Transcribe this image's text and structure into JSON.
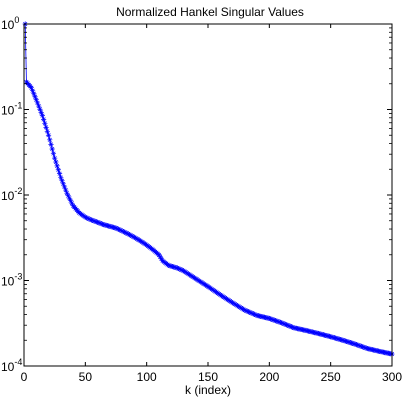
{
  "chart_data": {
    "type": "scatter",
    "title": "Normalized Hankel Singular Values",
    "xlabel": "k (index)",
    "ylabel": "",
    "xlim": [
      0,
      300
    ],
    "ylim": [
      0.0001,
      1
    ],
    "yscale": "log",
    "grid": false,
    "x_ticks": [
      0,
      50,
      100,
      150,
      200,
      250,
      300
    ],
    "y_ticks": [
      {
        "value": 1,
        "base": "10",
        "exp": "0"
      },
      {
        "value": 0.1,
        "base": "10",
        "exp": "-1"
      },
      {
        "value": 0.01,
        "base": "10",
        "exp": "-2"
      },
      {
        "value": 0.001,
        "base": "10",
        "exp": "-3"
      },
      {
        "value": 0.0001,
        "base": "10",
        "exp": "-4"
      }
    ],
    "marker": "*",
    "color": "#0000ff",
    "n_points": 300,
    "anchors": [
      [
        1,
        1.0
      ],
      [
        2,
        0.21
      ],
      [
        6,
        0.18
      ],
      [
        10,
        0.13
      ],
      [
        15,
        0.085
      ],
      [
        20,
        0.05
      ],
      [
        25,
        0.027
      ],
      [
        30,
        0.016
      ],
      [
        35,
        0.0105
      ],
      [
        40,
        0.0075
      ],
      [
        45,
        0.0062
      ],
      [
        50,
        0.0055
      ],
      [
        55,
        0.0051
      ],
      [
        60,
        0.0048
      ],
      [
        65,
        0.0045
      ],
      [
        70,
        0.0043
      ],
      [
        75,
        0.0041
      ],
      [
        80,
        0.0038
      ],
      [
        85,
        0.0035
      ],
      [
        90,
        0.0032
      ],
      [
        95,
        0.0029
      ],
      [
        100,
        0.0026
      ],
      [
        105,
        0.0023
      ],
      [
        110,
        0.002
      ],
      [
        113,
        0.0017
      ],
      [
        118,
        0.0015
      ],
      [
        125,
        0.0014
      ],
      [
        130,
        0.0013
      ],
      [
        140,
        0.00105
      ],
      [
        150,
        0.00085
      ],
      [
        160,
        0.00068
      ],
      [
        170,
        0.00055
      ],
      [
        180,
        0.00045
      ],
      [
        190,
        0.00039
      ],
      [
        200,
        0.00036
      ],
      [
        210,
        0.00032
      ],
      [
        220,
        0.00028
      ],
      [
        230,
        0.00026
      ],
      [
        240,
        0.00024
      ],
      [
        250,
        0.00022
      ],
      [
        260,
        0.0002
      ],
      [
        270,
        0.00018
      ],
      [
        280,
        0.00016
      ],
      [
        290,
        0.000148
      ],
      [
        300,
        0.000138
      ]
    ]
  }
}
